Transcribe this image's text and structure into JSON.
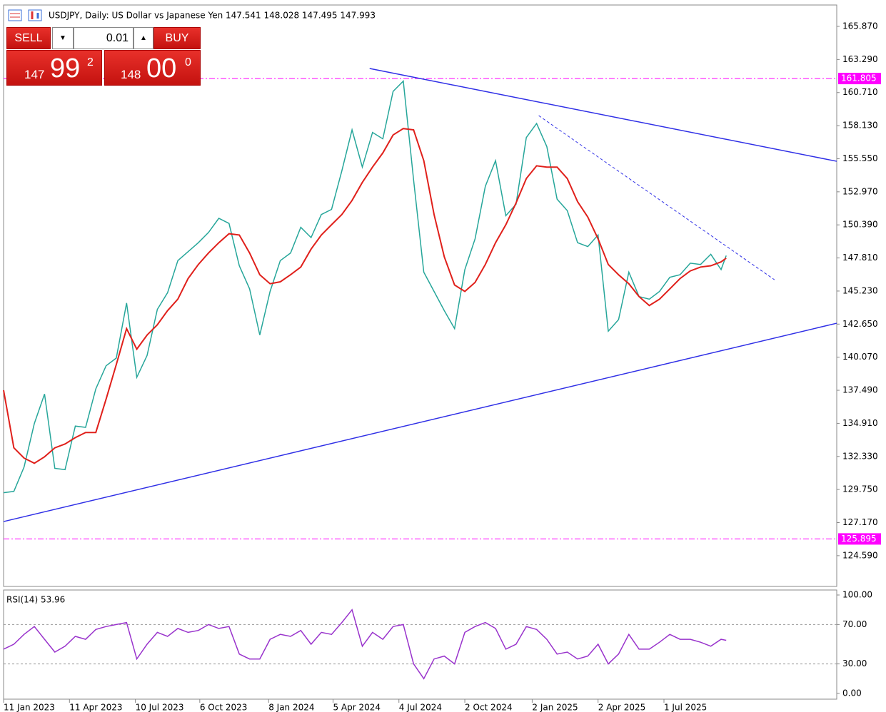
{
  "chart_data": [
    {
      "type": "line",
      "title": "USDJPY, Daily:  US Dollar vs Japanese Yen  147.541 148.028 147.495 147.993",
      "x": [
        "2023-01-11",
        "2023-01-25",
        "2023-02-08",
        "2023-02-22",
        "2023-03-08",
        "2023-03-22",
        "2023-04-05",
        "2023-04-19",
        "2023-05-03",
        "2023-05-17",
        "2023-05-31",
        "2023-06-14",
        "2023-06-28",
        "2023-07-12",
        "2023-07-26",
        "2023-08-09",
        "2023-08-23",
        "2023-09-06",
        "2023-09-20",
        "2023-10-04",
        "2023-10-18",
        "2023-11-01",
        "2023-11-15",
        "2023-11-29",
        "2023-12-13",
        "2023-12-27",
        "2024-01-10",
        "2024-01-24",
        "2024-02-07",
        "2024-02-21",
        "2024-03-06",
        "2024-03-20",
        "2024-04-03",
        "2024-04-17",
        "2024-05-01",
        "2024-05-15",
        "2024-05-29",
        "2024-06-12",
        "2024-06-26",
        "2024-07-10",
        "2024-07-24",
        "2024-08-07",
        "2024-08-21",
        "2024-09-04",
        "2024-09-18",
        "2024-10-02",
        "2024-10-16",
        "2024-10-30",
        "2024-11-13",
        "2024-11-27",
        "2024-12-11",
        "2024-12-25",
        "2025-01-08",
        "2025-01-22",
        "2025-02-05",
        "2025-02-19",
        "2025-03-05",
        "2025-03-19",
        "2025-04-02",
        "2025-04-16",
        "2025-04-30",
        "2025-05-14",
        "2025-05-28",
        "2025-06-11",
        "2025-06-25",
        "2025-07-09",
        "2025-07-23",
        "2025-08-06",
        "2025-08-20",
        "2025-09-03",
        "2025-09-17",
        "2025-09-24"
      ],
      "series": [
        {
          "color": "#26a69a",
          "values": [
            129.5,
            129.6,
            131.5,
            134.9,
            137.2,
            131.4,
            131.3,
            134.7,
            134.6,
            137.6,
            139.4,
            140.0,
            144.3,
            138.5,
            140.2,
            143.8,
            145.1,
            147.6,
            148.3,
            149.0,
            149.8,
            150.9,
            150.5,
            147.2,
            145.4,
            141.8,
            145.2,
            147.6,
            148.2,
            150.2,
            149.4,
            151.2,
            151.6,
            154.6,
            157.8,
            154.9,
            157.6,
            157.1,
            160.8,
            161.6,
            153.9,
            146.7,
            145.2,
            143.7,
            142.3,
            146.9,
            149.3,
            153.4,
            155.4,
            151.1,
            152.0,
            157.2,
            158.3,
            156.5,
            152.4,
            151.5,
            149.0,
            148.7,
            149.6,
            142.1,
            143.0,
            146.7,
            144.8,
            144.6,
            145.2,
            146.3,
            146.5,
            147.4,
            147.3,
            148.1,
            146.9,
            147.993
          ]
        },
        {
          "color": "#e0201b",
          "values": [
            137.5,
            133.0,
            132.2,
            131.8,
            132.3,
            133.0,
            133.3,
            133.8,
            134.2,
            134.2,
            136.8,
            139.5,
            142.3,
            140.7,
            141.8,
            142.6,
            143.7,
            144.6,
            146.2,
            147.3,
            148.2,
            149.0,
            149.7,
            149.6,
            148.2,
            146.5,
            145.8,
            145.95,
            146.5,
            147.1,
            148.5,
            149.6,
            150.4,
            151.2,
            152.3,
            153.7,
            154.9,
            156.0,
            157.4,
            157.9,
            157.8,
            155.4,
            151.2,
            147.9,
            145.7,
            145.2,
            145.9,
            147.3,
            149.0,
            150.4,
            152.1,
            154.0,
            155.0,
            154.9,
            154.9,
            154.0,
            152.2,
            151.0,
            149.3,
            147.3,
            146.5,
            145.8,
            144.8,
            144.1,
            144.6,
            145.4,
            146.2,
            146.8,
            147.1,
            147.2,
            147.5,
            147.8
          ]
        }
      ],
      "xlim": [
        "2023-01-11",
        "2026-02-22"
      ],
      "xticks": [
        {
          "value": "2023-01-11",
          "label": "11 Jan 2023"
        },
        {
          "value": "2023-04-11",
          "label": "11 Apr 2023"
        },
        {
          "value": "2023-07-10",
          "label": "10 Jul 2023"
        },
        {
          "value": "2023-10-06",
          "label": "6 Oct 2023"
        },
        {
          "value": "2024-01-08",
          "label": "8 Jan 2024"
        },
        {
          "value": "2024-04-05",
          "label": "5 Apr 2024"
        },
        {
          "value": "2024-07-04",
          "label": "4 Jul 2024"
        },
        {
          "value": "2024-10-02",
          "label": "2 Oct 2024"
        },
        {
          "value": "2025-01-02",
          "label": "2 Jan 2025"
        },
        {
          "value": "2025-04-02",
          "label": "2 Apr 2025"
        },
        {
          "value": "2025-07-01",
          "label": "1 Jul 2025"
        }
      ],
      "ylim": [
        122.19,
        167.54
      ],
      "yticks": [
        {
          "value": 124.59,
          "label": "124.590"
        },
        {
          "value": 127.17,
          "label": "127.170"
        },
        {
          "value": 129.75,
          "label": "129.750"
        },
        {
          "value": 132.33,
          "label": "132.330"
        },
        {
          "value": 134.91,
          "label": "134.910"
        },
        {
          "value": 137.49,
          "label": "137.490"
        },
        {
          "value": 140.07,
          "label": "140.070"
        },
        {
          "value": 142.65,
          "label": "142.650"
        },
        {
          "value": 145.23,
          "label": "145.230"
        },
        {
          "value": 147.81,
          "label": "147.810"
        },
        {
          "value": 150.39,
          "label": "150.390"
        },
        {
          "value": 152.97,
          "label": "152.970"
        },
        {
          "value": 155.55,
          "label": "155.550"
        },
        {
          "value": 158.13,
          "label": "158.130"
        },
        {
          "value": 160.71,
          "label": "160.710"
        },
        {
          "value": 163.29,
          "label": "163.290"
        },
        {
          "value": 165.87,
          "label": "165.870"
        }
      ],
      "levels": [
        {
          "value": 161.805,
          "label": "161.805",
          "color": "#ff00ff"
        },
        {
          "value": 125.895,
          "label": "125.895",
          "color": "#ff00ff"
        }
      ],
      "trendlines": [
        {
          "x": [
            "2024-05-25",
            "2026-02-22"
          ],
          "y": [
            162.59,
            155.35
          ],
          "color": "#2f2fe6",
          "dashed": false
        },
        {
          "x": [
            "2023-01-11",
            "2026-02-22"
          ],
          "y": [
            127.25,
            142.72
          ],
          "color": "#2f2fe6",
          "dashed": false
        },
        {
          "x": [
            "2025-01-11",
            "2025-11-29"
          ],
          "y": [
            158.91,
            146.11
          ],
          "color": "#2f2fe6",
          "dashed": true
        }
      ]
    },
    {
      "type": "line",
      "title": "RSI(14) 53.96",
      "x": [
        "2023-01-11",
        "2023-01-25",
        "2023-02-08",
        "2023-02-22",
        "2023-03-08",
        "2023-03-22",
        "2023-04-05",
        "2023-04-19",
        "2023-05-03",
        "2023-05-17",
        "2023-05-31",
        "2023-06-14",
        "2023-06-28",
        "2023-07-12",
        "2023-07-26",
        "2023-08-09",
        "2023-08-23",
        "2023-09-06",
        "2023-09-20",
        "2023-10-04",
        "2023-10-18",
        "2023-11-01",
        "2023-11-15",
        "2023-11-29",
        "2023-12-13",
        "2023-12-27",
        "2024-01-10",
        "2024-01-24",
        "2024-02-07",
        "2024-02-21",
        "2024-03-06",
        "2024-03-20",
        "2024-04-03",
        "2024-04-17",
        "2024-05-01",
        "2024-05-15",
        "2024-05-29",
        "2024-06-12",
        "2024-06-26",
        "2024-07-10",
        "2024-07-24",
        "2024-08-07",
        "2024-08-21",
        "2024-09-04",
        "2024-09-18",
        "2024-10-02",
        "2024-10-16",
        "2024-10-30",
        "2024-11-13",
        "2024-11-27",
        "2024-12-11",
        "2024-12-25",
        "2025-01-08",
        "2025-01-22",
        "2025-02-05",
        "2025-02-19",
        "2025-03-05",
        "2025-03-19",
        "2025-04-02",
        "2025-04-16",
        "2025-04-30",
        "2025-05-14",
        "2025-05-28",
        "2025-06-11",
        "2025-06-25",
        "2025-07-09",
        "2025-07-23",
        "2025-08-06",
        "2025-08-20",
        "2025-09-03",
        "2025-09-17",
        "2025-09-24"
      ],
      "series": [
        {
          "color": "#9933cc",
          "values": [
            45,
            50,
            60,
            68,
            55,
            42,
            48,
            58,
            55,
            65,
            68,
            70,
            72,
            35,
            50,
            62,
            58,
            66,
            62,
            64,
            70,
            66,
            68,
            40,
            35,
            35,
            55,
            60,
            58,
            64,
            50,
            62,
            60,
            72,
            85,
            48,
            62,
            55,
            68,
            70,
            30,
            15,
            35,
            38,
            30,
            62,
            68,
            72,
            66,
            45,
            50,
            68,
            65,
            55,
            40,
            42,
            35,
            38,
            50,
            30,
            40,
            60,
            45,
            45,
            52,
            60,
            55,
            55,
            52,
            48,
            55,
            53.96
          ]
        }
      ],
      "xlim": [
        "2023-01-11",
        "2026-02-22"
      ],
      "ylim": [
        -5.8,
        105.07
      ],
      "yticks": [
        {
          "value": 100,
          "label": "100.00"
        },
        {
          "value": 70,
          "label": "70.00"
        },
        {
          "value": 30,
          "label": "30.00"
        },
        {
          "value": 0,
          "label": "0.00"
        }
      ],
      "levels": [
        {
          "value": 70,
          "color": "#999999"
        },
        {
          "value": 30,
          "color": "#999999"
        }
      ]
    }
  ],
  "trade_panel": {
    "sell_label": "SELL",
    "buy_label": "BUY",
    "volume": "0.01",
    "sell_price": {
      "big": "147",
      "main": "99",
      "small": "2"
    },
    "buy_price": {
      "big": "148",
      "main": "00",
      "small": "0"
    }
  }
}
